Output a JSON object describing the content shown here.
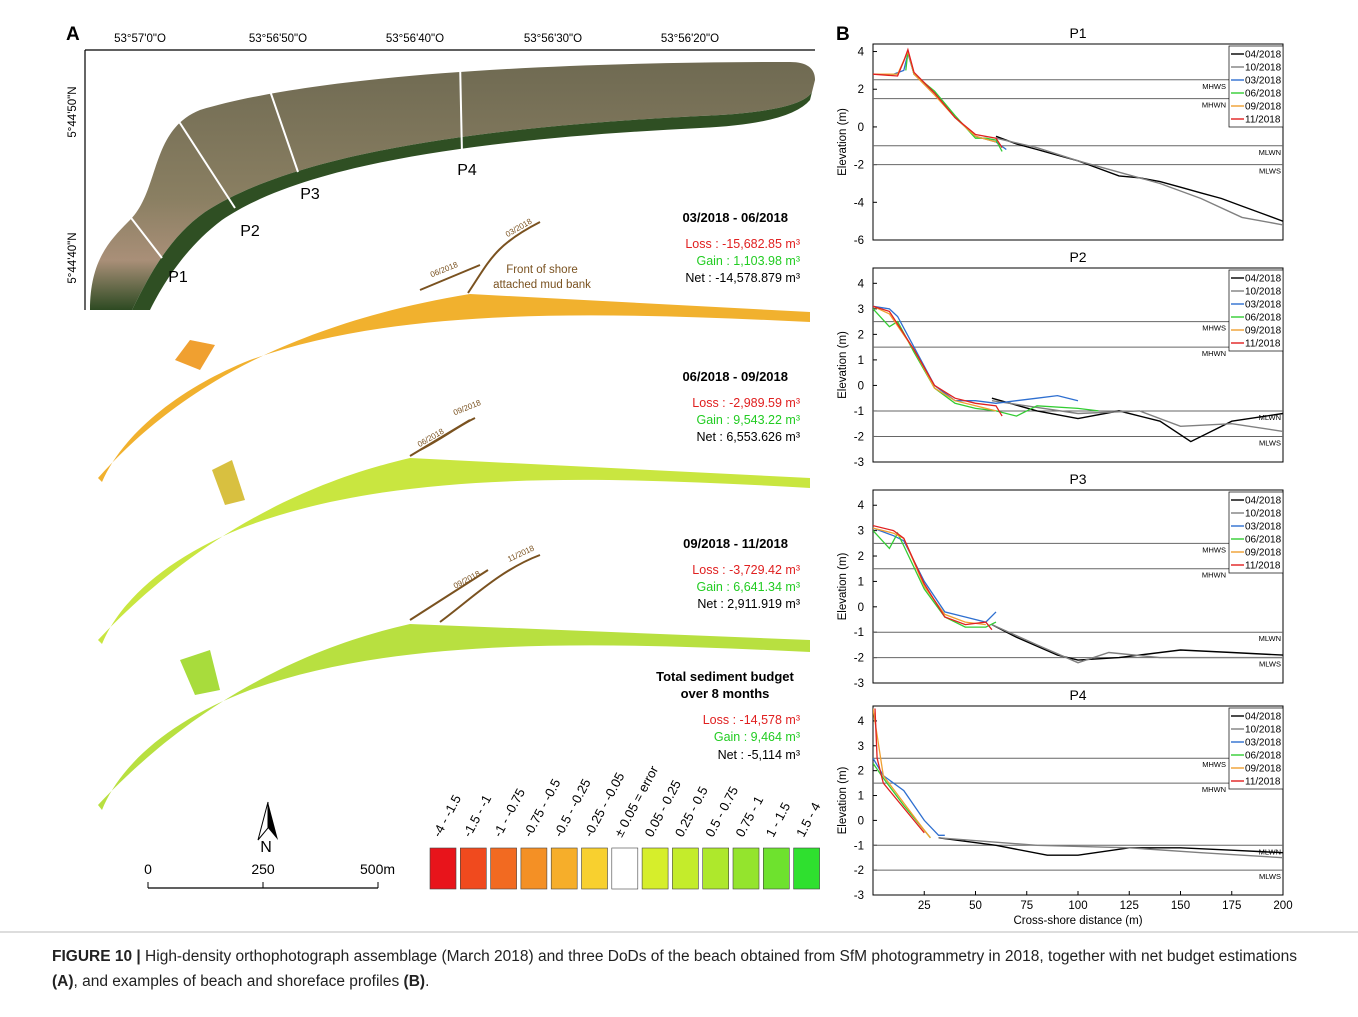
{
  "panel_a": {
    "label": "A",
    "longitudes": [
      "53°57'0\"O",
      "53°56'50\"O",
      "53°56'40\"O",
      "53°56'30\"O",
      "53°56'20\"O"
    ],
    "latitudes": [
      "5°44'50\"N",
      "5°44'40\"N"
    ],
    "profiles": [
      "P1",
      "P2",
      "P3",
      "P4"
    ],
    "budgets": [
      {
        "heading": "03/2018 - 06/2018",
        "loss": "Loss : -15,682.85 m³",
        "gain": "Gain : 1,103.98 m³",
        "net": "Net : -14,578.879 m³",
        "front_labels": [
          "06/2018",
          "03/2018"
        ]
      },
      {
        "heading": "06/2018 - 09/2018",
        "loss": "Loss : -2,989.59 m³",
        "gain": "Gain : 9,543.22 m³",
        "net": "Net : 6,553.626 m³",
        "front_labels": [
          "06/2018",
          "09/2018"
        ]
      },
      {
        "heading": "09/2018 - 11/2018",
        "loss": "Loss : -3,729.42 m³",
        "gain": "Gain : 6,641.34 m³",
        "net": "Net : 2,911.919 m³",
        "front_labels": [
          "09/2018",
          "11/2018"
        ]
      }
    ],
    "annotation": [
      "Front of shore",
      "attached mud bank"
    ],
    "total": {
      "heading": [
        "Total sediment budget",
        "over 8 months"
      ],
      "loss": "Loss : -14,578 m³",
      "gain": "Gain : 9,464 m³",
      "net": "Net : -5,114 m³"
    },
    "north": "N",
    "scale": [
      "0",
      "250",
      "500m"
    ],
    "legend": [
      {
        "label": "-4 - -1.5",
        "color": "#e8141b"
      },
      {
        "label": "-1.5 - -1",
        "color": "#f04a1e"
      },
      {
        "label": "-1 - -0.75",
        "color": "#f26a21"
      },
      {
        "label": "-0.75 - -0.5",
        "color": "#f49025"
      },
      {
        "label": "-0.5 - -0.25",
        "color": "#f6ae2a"
      },
      {
        "label": "-0.25 - -0.05",
        "color": "#f8d02f"
      },
      {
        "label": "± 0.05 = error",
        "color": "#ffffff"
      },
      {
        "label": "0.05 - 0.25",
        "color": "#d6ee2b"
      },
      {
        "label": "0.25 - 0.5",
        "color": "#c4ec2b"
      },
      {
        "label": "0.5 - 0.75",
        "color": "#aee82c"
      },
      {
        "label": "0.75 - 1",
        "color": "#94e42d"
      },
      {
        "label": "1 - 1.5",
        "color": "#6ee22e"
      },
      {
        "label": "1.5 - 4",
        "color": "#2fe02f"
      }
    ]
  },
  "panel_b_label": "B",
  "chart_data": [
    {
      "type": "line",
      "title": "P1",
      "y_label": "Elevation (m)",
      "xlim": [
        0,
        200
      ],
      "ylim": [
        -6,
        4.4
      ],
      "yticks": [
        -6,
        -4,
        -2,
        0,
        2,
        4
      ],
      "reference_lines": [
        {
          "label": "MHWS",
          "value": 2.5
        },
        {
          "label": "MHWN",
          "value": 1.5
        },
        {
          "label": "MLWN",
          "value": -1
        },
        {
          "label": "MLWS",
          "value": -2
        }
      ],
      "series": [
        {
          "name": "04/2018",
          "color": "#000000",
          "x": [
            60,
            70,
            80,
            90,
            100,
            110,
            120,
            130,
            140,
            150,
            160,
            170,
            180,
            190,
            200
          ],
          "values": [
            -0.5,
            -0.9,
            -1.2,
            -1.5,
            -1.8,
            -2.2,
            -2.6,
            -2.7,
            -2.9,
            -3.2,
            -3.5,
            -3.8,
            -4.2,
            -4.6,
            -5.0
          ]
        },
        {
          "name": "10/2018",
          "color": "#808080",
          "x": [
            60,
            80,
            100,
            120,
            140,
            160,
            180,
            200
          ],
          "values": [
            -0.6,
            -1.1,
            -1.8,
            -2.4,
            -3.0,
            -3.8,
            -4.8,
            -5.2
          ]
        },
        {
          "name": "03/2018",
          "color": "#2e6fd0",
          "x": [
            0,
            10,
            15,
            17,
            20,
            30,
            40,
            50,
            60,
            65
          ],
          "values": [
            2.8,
            2.8,
            3.0,
            3.9,
            2.8,
            1.8,
            0.5,
            -0.5,
            -0.8,
            -1.2
          ]
        },
        {
          "name": "06/2018",
          "color": "#33cc33",
          "x": [
            16,
            17,
            20,
            30,
            40,
            50,
            55,
            60,
            63
          ],
          "values": [
            3.0,
            4.0,
            2.8,
            1.9,
            0.6,
            -0.6,
            -0.6,
            -0.7,
            -1.3
          ]
        },
        {
          "name": "09/2018",
          "color": "#f0a030",
          "x": [
            0,
            12,
            17,
            20,
            30,
            40,
            50,
            60
          ],
          "values": [
            2.8,
            2.8,
            4.0,
            2.8,
            1.7,
            0.5,
            -0.5,
            -0.8
          ]
        },
        {
          "name": "11/2018",
          "color": "#e02020",
          "x": [
            0,
            12,
            15,
            17,
            20,
            30,
            40,
            50,
            60,
            63
          ],
          "values": [
            2.8,
            2.7,
            3.5,
            4.1,
            2.9,
            1.8,
            0.5,
            -0.4,
            -0.6,
            -1.1
          ]
        }
      ]
    },
    {
      "type": "line",
      "title": "P2",
      "y_label": "Elevation (m)",
      "xlim": [
        0,
        200
      ],
      "ylim": [
        -3,
        4.6
      ],
      "yticks": [
        -3,
        -2,
        -1,
        0,
        1,
        2,
        3,
        4
      ],
      "reference_lines": [
        {
          "label": "MHWS",
          "value": 2.5
        },
        {
          "label": "MHWN",
          "value": 1.5
        },
        {
          "label": "MLWN",
          "value": -1
        },
        {
          "label": "MLWS",
          "value": -2
        }
      ],
      "series": [
        {
          "name": "04/2018",
          "color": "#000000",
          "x": [
            58,
            80,
            100,
            120,
            140,
            155,
            175,
            200
          ],
          "values": [
            -0.5,
            -1.0,
            -1.3,
            -1.0,
            -1.4,
            -2.2,
            -1.4,
            -1.1
          ]
        },
        {
          "name": "10/2018",
          "color": "#808080",
          "x": [
            58,
            100,
            130,
            150,
            175,
            200
          ],
          "values": [
            -0.6,
            -1.1,
            -1.0,
            -1.6,
            -1.5,
            -1.8
          ]
        },
        {
          "name": "03/2018",
          "color": "#2e6fd0",
          "x": [
            0,
            8,
            12,
            20,
            30,
            40,
            50,
            60,
            70,
            80,
            90,
            100
          ],
          "values": [
            3.1,
            3.0,
            2.7,
            1.5,
            0,
            -0.6,
            -0.6,
            -0.7,
            -0.6,
            -0.5,
            -0.4,
            -0.6
          ]
        },
        {
          "name": "06/2018",
          "color": "#33cc33",
          "x": [
            0,
            8,
            12,
            20,
            30,
            40,
            50,
            60,
            70,
            80,
            100,
            110
          ],
          "values": [
            3.0,
            2.3,
            2.5,
            1.3,
            -0.1,
            -0.7,
            -0.9,
            -1.0,
            -1.2,
            -0.8,
            -0.9,
            -1.0
          ]
        },
        {
          "name": "09/2018",
          "color": "#f0a030",
          "x": [
            0,
            8,
            20,
            30,
            40,
            50,
            60
          ],
          "values": [
            3.1,
            2.8,
            1.4,
            -0.1,
            -0.6,
            -0.8,
            -1.0
          ]
        },
        {
          "name": "11/2018",
          "color": "#e02020",
          "x": [
            0,
            8,
            20,
            30,
            40,
            50,
            60,
            63
          ],
          "values": [
            3.1,
            2.9,
            1.4,
            0,
            -0.5,
            -0.7,
            -0.8,
            -1.2
          ]
        }
      ]
    },
    {
      "type": "line",
      "title": "P3",
      "y_label": "Elevation (m)",
      "xlim": [
        0,
        200
      ],
      "ylim": [
        -3,
        4.6
      ],
      "yticks": [
        -3,
        -2,
        -1,
        0,
        1,
        2,
        3,
        4
      ],
      "reference_lines": [
        {
          "label": "MHWS",
          "value": 2.5
        },
        {
          "label": "MHWN",
          "value": 1.5
        },
        {
          "label": "MLWN",
          "value": -1
        },
        {
          "label": "MLWS",
          "value": -2
        }
      ],
      "series": [
        {
          "name": "04/2018",
          "color": "#000000",
          "x": [
            58,
            70,
            90,
            100,
            120,
            150,
            175,
            200
          ],
          "values": [
            -0.7,
            -1.2,
            -1.9,
            -2.1,
            -2.0,
            -1.7,
            -1.8,
            -1.9
          ]
        },
        {
          "name": "10/2018",
          "color": "#808080",
          "x": [
            58,
            80,
            100,
            115,
            140,
            200
          ],
          "values": [
            -0.7,
            -1.5,
            -2.2,
            -1.8,
            -2.0,
            -2.0
          ]
        },
        {
          "name": "03/2018",
          "color": "#2e6fd0",
          "x": [
            0,
            10,
            15,
            25,
            35,
            45,
            55,
            60
          ],
          "values": [
            3.1,
            2.8,
            2.6,
            1.0,
            -0.2,
            -0.4,
            -0.6,
            -0.2
          ]
        },
        {
          "name": "06/2018",
          "color": "#33cc33",
          "x": [
            0,
            8,
            12,
            15,
            25,
            35,
            45,
            55,
            60
          ],
          "values": [
            3.0,
            2.3,
            2.9,
            2.4,
            0.7,
            -0.4,
            -0.8,
            -0.8,
            -0.6
          ]
        },
        {
          "name": "09/2018",
          "color": "#f0a030",
          "x": [
            0,
            10,
            15,
            25,
            35,
            45,
            55
          ],
          "values": [
            3.1,
            2.9,
            2.7,
            0.8,
            -0.3,
            -0.6,
            -0.7
          ]
        },
        {
          "name": "11/2018",
          "color": "#e02020",
          "x": [
            0,
            10,
            15,
            25,
            35,
            45,
            55,
            58
          ],
          "values": [
            3.2,
            3.0,
            2.7,
            0.9,
            -0.4,
            -0.7,
            -0.6,
            -0.9
          ]
        }
      ]
    },
    {
      "type": "line",
      "title": "P4",
      "y_label": "Elevation (m)",
      "x_label": "Cross-shore distance (m)",
      "xlim": [
        0,
        200
      ],
      "ylim": [
        -3,
        4.6
      ],
      "xticks": [
        25,
        50,
        75,
        100,
        125,
        150,
        175,
        200
      ],
      "yticks": [
        -3,
        -2,
        -1,
        0,
        1,
        2,
        3,
        4
      ],
      "reference_lines": [
        {
          "label": "MHWS",
          "value": 2.5
        },
        {
          "label": "MHWN",
          "value": 1.5
        },
        {
          "label": "MLWN",
          "value": -1
        },
        {
          "label": "MLWS",
          "value": -2
        }
      ],
      "series": [
        {
          "name": "04/2018",
          "color": "#000000",
          "x": [
            32,
            60,
            85,
            100,
            125,
            150,
            175,
            200
          ],
          "values": [
            -0.7,
            -1.0,
            -1.4,
            -1.4,
            -1.1,
            -1.1,
            -1.2,
            -1.3
          ]
        },
        {
          "name": "10/2018",
          "color": "#808080",
          "x": [
            32,
            80,
            125,
            160,
            200
          ],
          "values": [
            -0.7,
            -1.0,
            -1.1,
            -1.3,
            -1.5
          ]
        },
        {
          "name": "03/2018",
          "color": "#2e6fd0",
          "x": [
            0,
            5,
            15,
            25,
            32,
            35
          ],
          "values": [
            2.5,
            1.8,
            1.2,
            0,
            -0.6,
            -0.6
          ]
        },
        {
          "name": "06/2018",
          "color": "#33cc33",
          "x": [
            0,
            5,
            15,
            25,
            28
          ],
          "values": [
            2.3,
            1.7,
            0.6,
            -0.4,
            -0.7
          ]
        },
        {
          "name": "09/2018",
          "color": "#f0a030",
          "x": [
            0,
            5,
            15,
            25,
            28
          ],
          "values": [
            4.5,
            1.8,
            0.7,
            -0.4,
            -0.7
          ]
        },
        {
          "name": "11/2018",
          "color": "#e02020",
          "x": [
            1,
            2,
            5,
            15,
            25
          ],
          "values": [
            4.5,
            2.5,
            1.5,
            0.5,
            -0.5
          ]
        }
      ]
    }
  ],
  "caption": {
    "label": "FIGURE 10 |",
    "text_1": " High-density orthophotograph assemblage (March 2018) and three DoDs of the beach obtained from SfM photogrammetry in 2018, together with net budget estimations ",
    "ref_a": "(A)",
    "text_2": ", and examples of beach and shoreface profiles ",
    "ref_b": "(B)",
    "text_3": "."
  }
}
